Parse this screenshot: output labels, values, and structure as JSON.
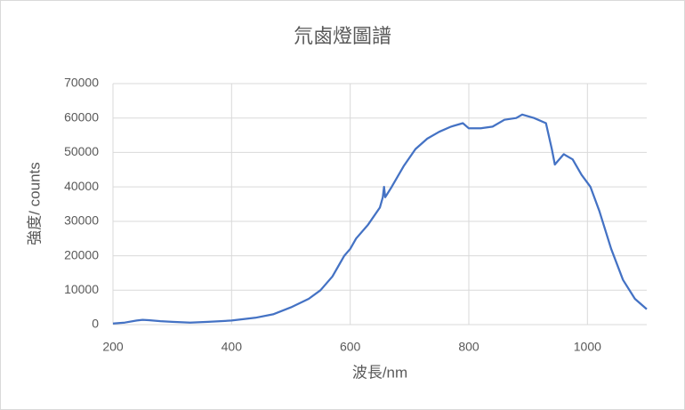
{
  "chart_data": {
    "type": "line",
    "title": "氘鹵燈圖譜",
    "x_label": "波長/nm",
    "y_label": "強度/ counts",
    "series": [
      {
        "name": "強度",
        "color": "#4472c4",
        "x": [
          200,
          220,
          240,
          250,
          260,
          280,
          300,
          330,
          360,
          400,
          440,
          470,
          500,
          530,
          550,
          570,
          590,
          600,
          610,
          630,
          650,
          655,
          657,
          659,
          670,
          690,
          710,
          730,
          750,
          770,
          790,
          800,
          820,
          840,
          860,
          880,
          890,
          910,
          930,
          940,
          945,
          950,
          960,
          975,
          990,
          1005,
          1020,
          1040,
          1060,
          1080,
          1100
        ],
        "values": [
          300,
          600,
          1200,
          1400,
          1300,
          1000,
          800,
          600,
          800,
          1200,
          2000,
          3000,
          5000,
          7500,
          10000,
          14000,
          20000,
          22000,
          25000,
          29000,
          34000,
          37000,
          40000,
          37000,
          40000,
          46000,
          51000,
          54000,
          56000,
          57500,
          58500,
          57000,
          57000,
          57500,
          59500,
          60000,
          61000,
          60000,
          58500,
          51000,
          46500,
          47500,
          49500,
          48000,
          43500,
          40000,
          33000,
          22000,
          13000,
          7500,
          4500
        ]
      }
    ],
    "xlim": [
      200,
      1100
    ],
    "xticks": [
      200,
      400,
      600,
      800,
      1000
    ],
    "ylim": [
      0,
      70000
    ],
    "yticks": [
      0,
      10000,
      20000,
      30000,
      40000,
      50000,
      60000,
      70000
    ],
    "grid": true
  }
}
